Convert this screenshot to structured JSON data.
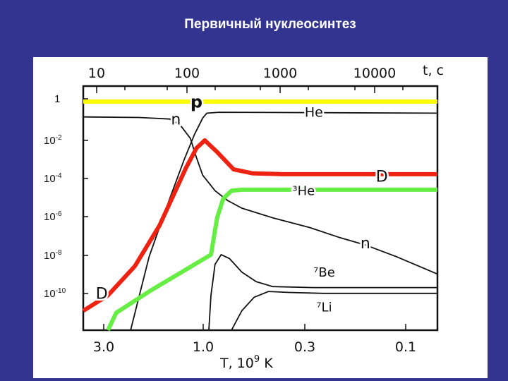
{
  "slide": {
    "title": "Первичный нуклеосинтез"
  },
  "chart_data": {
    "type": "line",
    "top_axis": {
      "label": "t, с",
      "ticks": [
        "10",
        "100",
        "1000",
        "10000"
      ]
    },
    "bottom_axis": {
      "label_prefix": "T, 10",
      "label_exp": "9",
      "label_suffix": " K",
      "ticks": [
        "3.0",
        "1.0",
        "0.3",
        "0.1"
      ]
    },
    "y_axis": {
      "ticks": [
        {
          "mant": "1",
          "exp": ""
        },
        {
          "mant": "10",
          "exp": "-2"
        },
        {
          "mant": "10",
          "exp": "-4"
        },
        {
          "mant": "10",
          "exp": "-6"
        },
        {
          "mant": "10",
          "exp": "-8"
        },
        {
          "mant": "10",
          "exp": "-10"
        }
      ]
    },
    "x_range_log10_T9": [
      0.62,
      -1.1
    ],
    "y_range_log10": [
      0.8,
      -11.8
    ],
    "series": [
      {
        "name": "p",
        "color": "#ffff00",
        "style": "thick",
        "points": [
          [
            0.62,
            0
          ],
          [
            -1.1,
            0
          ]
        ],
        "labels": [
          {
            "text": "p",
            "at": [
              0.07,
              0
            ],
            "size": 24,
            "weight": "bold"
          }
        ]
      },
      {
        "name": "n",
        "color": "#111111",
        "style": "thin",
        "points": [
          [
            0.62,
            -0.79
          ],
          [
            0.35,
            -0.82
          ],
          [
            0.2,
            -0.9
          ],
          [
            0.15,
            -1.2
          ],
          [
            0.1,
            -1.9
          ],
          [
            0.07,
            -2.9
          ],
          [
            0.04,
            -3.8
          ],
          [
            -0.02,
            -4.6
          ],
          [
            -0.08,
            -5.1
          ],
          [
            -0.15,
            -5.5
          ],
          [
            -0.3,
            -6.0
          ],
          [
            -0.48,
            -6.5
          ],
          [
            -0.62,
            -7.0
          ],
          [
            -0.75,
            -7.4
          ],
          [
            -0.9,
            -8.0
          ],
          [
            -1.1,
            -8.9
          ]
        ],
        "labels": [
          {
            "text": "n",
            "at": [
              0.17,
              -0.9
            ],
            "size": 22,
            "weight": "normal"
          },
          {
            "text": "n",
            "at": [
              -0.75,
              -7.3
            ],
            "size": 22,
            "weight": "normal"
          }
        ]
      },
      {
        "name": "n-rise",
        "color": "#111111",
        "style": "thin",
        "points": [
          [
            0.39,
            -11.8
          ],
          [
            0.3,
            -8.0
          ],
          [
            0.2,
            -5.0
          ],
          [
            0.13,
            -3.0
          ],
          [
            0.08,
            -1.7
          ],
          [
            0.04,
            -0.85
          ],
          [
            0.02,
            -0.6
          ],
          [
            -0.04,
            -0.55
          ],
          [
            -1.1,
            -0.6
          ]
        ],
        "labels": [
          {
            "text": "He",
            "at": [
              -0.5,
              -0.55
            ],
            "size": 19,
            "weight": "normal"
          }
        ]
      },
      {
        "name": "D",
        "color": "#ee2211",
        "style": "thick",
        "points": [
          [
            0.62,
            -10.8
          ],
          [
            0.5,
            -10.0
          ],
          [
            0.37,
            -8.5
          ],
          [
            0.25,
            -6.4
          ],
          [
            0.12,
            -3.4
          ],
          [
            0.07,
            -2.4
          ],
          [
            0.03,
            -2.0
          ],
          [
            -0.03,
            -2.6
          ],
          [
            -0.11,
            -3.5
          ],
          [
            -0.2,
            -3.7
          ],
          [
            -0.35,
            -3.75
          ],
          [
            -1.1,
            -3.75
          ]
        ],
        "labels": [
          {
            "text": "D",
            "at": [
              0.53,
              -9.9
            ],
            "size": 22,
            "weight": "normal"
          },
          {
            "text": "D",
            "at": [
              -0.83,
              -3.85
            ],
            "size": 22,
            "weight": "normal"
          }
        ]
      },
      {
        "name": "3He",
        "color": "#66ee44",
        "style": "thick",
        "points": [
          [
            0.5,
            -11.8
          ],
          [
            0.46,
            -10.9
          ],
          [
            0.3,
            -9.8
          ],
          [
            0.0,
            -7.9
          ],
          [
            -0.03,
            -6.0
          ],
          [
            -0.06,
            -5.0
          ],
          [
            -0.1,
            -4.6
          ],
          [
            -0.15,
            -4.55
          ],
          [
            -1.1,
            -4.55
          ]
        ],
        "labels": [
          {
            "text": "³He",
            "at": [
              -0.45,
              -4.6
            ],
            "size": 18,
            "weight": "normal"
          }
        ]
      },
      {
        "name": "7Be",
        "color": "#111111",
        "style": "thin",
        "points": [
          [
            0.01,
            -11.8
          ],
          [
            0.0,
            -10.0
          ],
          [
            -0.02,
            -8.4
          ],
          [
            -0.05,
            -7.9
          ],
          [
            -0.09,
            -8.1
          ],
          [
            -0.15,
            -8.8
          ],
          [
            -0.22,
            -9.3
          ],
          [
            -0.3,
            -9.55
          ],
          [
            -0.5,
            -9.6
          ],
          [
            -1.1,
            -9.6
          ]
        ],
        "labels": [
          {
            "text": "⁷Be",
            "at": [
              -0.55,
              -8.8
            ],
            "size": 18,
            "weight": "normal"
          }
        ]
      },
      {
        "name": "7Li",
        "color": "#111111",
        "style": "thin",
        "points": [
          [
            -0.1,
            -11.8
          ],
          [
            -0.15,
            -10.8
          ],
          [
            -0.21,
            -10.1
          ],
          [
            -0.28,
            -9.8
          ],
          [
            -0.38,
            -9.85
          ],
          [
            -0.55,
            -9.9
          ],
          [
            -1.1,
            -9.9
          ]
        ],
        "labels": [
          {
            "text": "⁷Li",
            "at": [
              -0.55,
              -10.6
            ],
            "size": 18,
            "weight": "normal"
          }
        ]
      }
    ]
  }
}
